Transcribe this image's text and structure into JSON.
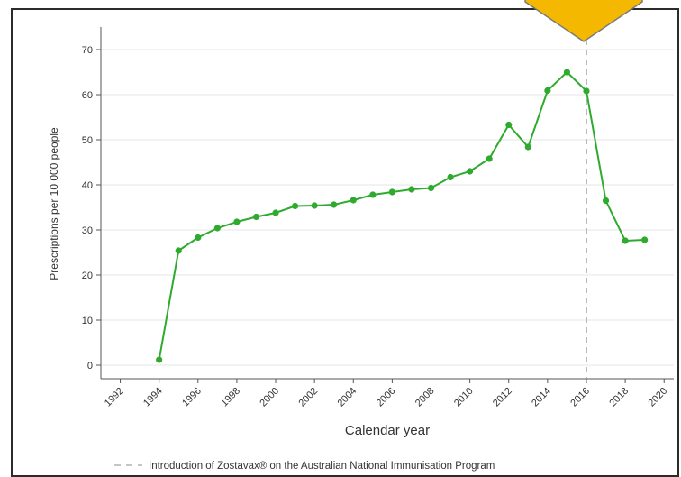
{
  "chart_data": {
    "type": "line",
    "xlabel": "Calendar year",
    "ylabel": "Prescriptions per 10 000 people",
    "xlim": [
      1991,
      2020.5
    ],
    "ylim": [
      -3,
      75
    ],
    "x_ticks": [
      1992,
      1994,
      1996,
      1998,
      2000,
      2002,
      2004,
      2006,
      2008,
      2010,
      2012,
      2014,
      2016,
      2018,
      2020
    ],
    "y_ticks": [
      0,
      10,
      20,
      30,
      40,
      50,
      60,
      70
    ],
    "grid": "horizontal",
    "series": [
      {
        "x": [
          1994,
          1995,
          1996,
          1997,
          1998,
          1999,
          2000,
          2001,
          2002,
          2003,
          2004,
          2005,
          2006,
          2007,
          2008,
          2009,
          2010,
          2011,
          2012,
          2013,
          2014,
          2015,
          2016,
          2017,
          2018,
          2019
        ],
        "values": [
          1.2,
          25.4,
          28.3,
          30.4,
          31.8,
          32.9,
          33.8,
          35.3,
          35.4,
          35.6,
          36.6,
          37.8,
          38.4,
          39.0,
          39.3,
          41.7,
          43.0,
          45.8,
          53.3,
          48.4,
          60.9,
          65.0,
          60.8,
          36.5,
          27.6,
          27.8
        ],
        "color": "#2eaa2e"
      }
    ],
    "reference_line": {
      "x": 2016,
      "label": "Introduction of Zostavax® on the Australian National Immunisation Program",
      "color": "#999999",
      "style": "dashed"
    },
    "legend_position": "bottom"
  },
  "badge_color": "#f5b800"
}
